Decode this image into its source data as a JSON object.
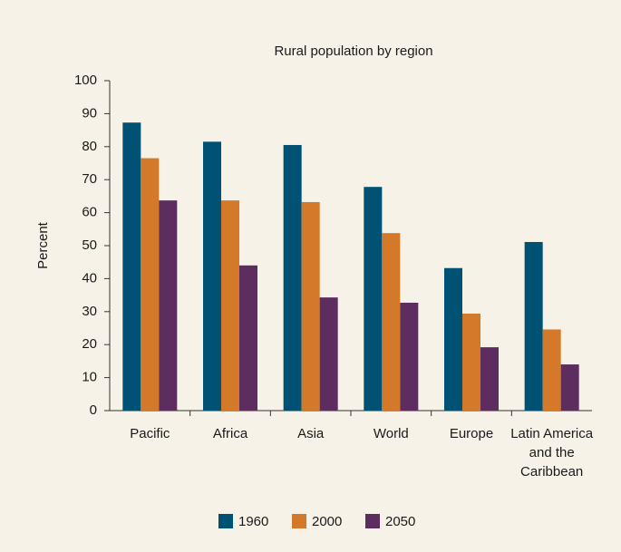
{
  "chart_data": {
    "type": "bar",
    "title": "Rural population by region",
    "ylabel": "Percent",
    "categories": [
      "Pacific",
      "Africa",
      "Asia",
      "World",
      "Europe",
      "Latin America and the Caribbean"
    ],
    "series": [
      {
        "name": "1960",
        "color": "#005274",
        "values": [
          87.3,
          81.5,
          80.5,
          67.8,
          43.2,
          51.1
        ]
      },
      {
        "name": "2000",
        "color": "#d4782a",
        "values": [
          76.5,
          63.7,
          63.2,
          53.8,
          29.4,
          24.6
        ]
      },
      {
        "name": "2050",
        "color": "#5e2d5f",
        "values": [
          63.7,
          44,
          34.3,
          32.7,
          19.2,
          14
        ]
      }
    ],
    "ylim": [
      0,
      100
    ],
    "yticks": [
      0,
      10,
      20,
      30,
      40,
      50,
      60,
      70,
      80,
      90,
      100
    ],
    "grid": false,
    "legend": "bottom"
  }
}
